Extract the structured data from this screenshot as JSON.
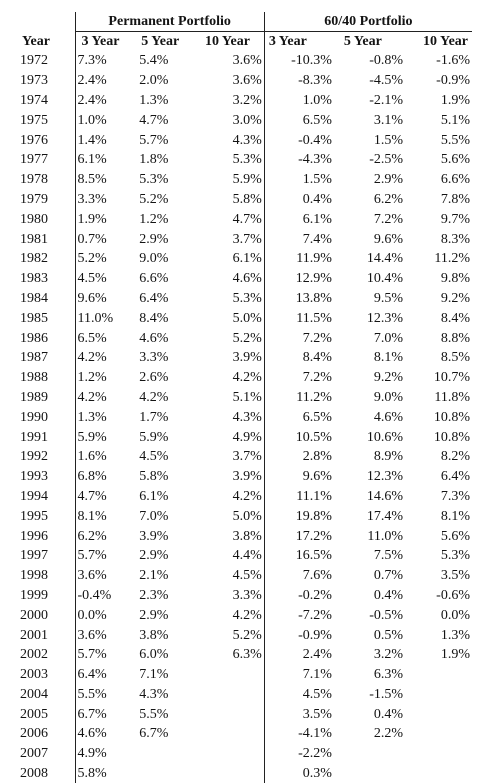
{
  "headers": {
    "permanent_portfolio": "Permanent Portfolio",
    "sixty_forty_portfolio": "60/40 Portfolio",
    "year": "Year",
    "three_year": "3 Year",
    "five_year": "5 Year",
    "ten_year": "10 Year"
  },
  "rows": [
    {
      "year": "1972",
      "p3": "7.3%",
      "p5": "5.4%",
      "p10": "3.6%",
      "s3": "-10.3%",
      "s5": "-0.8%",
      "s10": "-1.6%"
    },
    {
      "year": "1973",
      "p3": "2.4%",
      "p5": "2.0%",
      "p10": "3.6%",
      "s3": "-8.3%",
      "s5": "-4.5%",
      "s10": "-0.9%"
    },
    {
      "year": "1974",
      "p3": "2.4%",
      "p5": "1.3%",
      "p10": "3.2%",
      "s3": "1.0%",
      "s5": "-2.1%",
      "s10": "1.9%"
    },
    {
      "year": "1975",
      "p3": "1.0%",
      "p5": "4.7%",
      "p10": "3.0%",
      "s3": "6.5%",
      "s5": "3.1%",
      "s10": "5.1%"
    },
    {
      "year": "1976",
      "p3": "1.4%",
      "p5": "5.7%",
      "p10": "4.3%",
      "s3": "-0.4%",
      "s5": "1.5%",
      "s10": "5.5%"
    },
    {
      "year": "1977",
      "p3": "6.1%",
      "p5": "1.8%",
      "p10": "5.3%",
      "s3": "-4.3%",
      "s5": "-2.5%",
      "s10": "5.6%"
    },
    {
      "year": "1978",
      "p3": "8.5%",
      "p5": "5.3%",
      "p10": "5.9%",
      "s3": "1.5%",
      "s5": "2.9%",
      "s10": "6.6%"
    },
    {
      "year": "1979",
      "p3": "3.3%",
      "p5": "5.2%",
      "p10": "5.8%",
      "s3": "0.4%",
      "s5": "6.2%",
      "s10": "7.8%"
    },
    {
      "year": "1980",
      "p3": "1.9%",
      "p5": "1.2%",
      "p10": "4.7%",
      "s3": "6.1%",
      "s5": "7.2%",
      "s10": "9.7%"
    },
    {
      "year": "1981",
      "p3": "0.7%",
      "p5": "2.9%",
      "p10": "3.7%",
      "s3": "7.4%",
      "s5": "9.6%",
      "s10": "8.3%"
    },
    {
      "year": "1982",
      "p3": "5.2%",
      "p5": "9.0%",
      "p10": "6.1%",
      "s3": "11.9%",
      "s5": "14.4%",
      "s10": "11.2%"
    },
    {
      "year": "1983",
      "p3": "4.5%",
      "p5": "6.6%",
      "p10": "4.6%",
      "s3": "12.9%",
      "s5": "10.4%",
      "s10": "9.8%"
    },
    {
      "year": "1984",
      "p3": "9.6%",
      "p5": "6.4%",
      "p10": "5.3%",
      "s3": "13.8%",
      "s5": "9.5%",
      "s10": "9.2%"
    },
    {
      "year": "1985",
      "p3": "11.0%",
      "p5": "8.4%",
      "p10": "5.0%",
      "s3": "11.5%",
      "s5": "12.3%",
      "s10": "8.4%"
    },
    {
      "year": "1986",
      "p3": "6.5%",
      "p5": "4.6%",
      "p10": "5.2%",
      "s3": "7.2%",
      "s5": "7.0%",
      "s10": "8.8%"
    },
    {
      "year": "1987",
      "p3": "4.2%",
      "p5": "3.3%",
      "p10": "3.9%",
      "s3": "8.4%",
      "s5": "8.1%",
      "s10": "8.5%"
    },
    {
      "year": "1988",
      "p3": "1.2%",
      "p5": "2.6%",
      "p10": "4.2%",
      "s3": "7.2%",
      "s5": "9.2%",
      "s10": "10.7%"
    },
    {
      "year": "1989",
      "p3": "4.2%",
      "p5": "4.2%",
      "p10": "5.1%",
      "s3": "11.2%",
      "s5": "9.0%",
      "s10": "11.8%"
    },
    {
      "year": "1990",
      "p3": "1.3%",
      "p5": "1.7%",
      "p10": "4.3%",
      "s3": "6.5%",
      "s5": "4.6%",
      "s10": "10.8%"
    },
    {
      "year": "1991",
      "p3": "5.9%",
      "p5": "5.9%",
      "p10": "4.9%",
      "s3": "10.5%",
      "s5": "10.6%",
      "s10": "10.8%"
    },
    {
      "year": "1992",
      "p3": "1.6%",
      "p5": "4.5%",
      "p10": "3.7%",
      "s3": "2.8%",
      "s5": "8.9%",
      "s10": "8.2%"
    },
    {
      "year": "1993",
      "p3": "6.8%",
      "p5": "5.8%",
      "p10": "3.9%",
      "s3": "9.6%",
      "s5": "12.3%",
      "s10": "6.4%"
    },
    {
      "year": "1994",
      "p3": "4.7%",
      "p5": "6.1%",
      "p10": "4.2%",
      "s3": "11.1%",
      "s5": "14.6%",
      "s10": "7.3%"
    },
    {
      "year": "1995",
      "p3": "8.1%",
      "p5": "7.0%",
      "p10": "5.0%",
      "s3": "19.8%",
      "s5": "17.4%",
      "s10": "8.1%"
    },
    {
      "year": "1996",
      "p3": "6.2%",
      "p5": "3.9%",
      "p10": "3.8%",
      "s3": "17.2%",
      "s5": "11.0%",
      "s10": "5.6%"
    },
    {
      "year": "1997",
      "p3": "5.7%",
      "p5": "2.9%",
      "p10": "4.4%",
      "s3": "16.5%",
      "s5": "7.5%",
      "s10": "5.3%"
    },
    {
      "year": "1998",
      "p3": "3.6%",
      "p5": "2.1%",
      "p10": "4.5%",
      "s3": "7.6%",
      "s5": "0.7%",
      "s10": "3.5%"
    },
    {
      "year": "1999",
      "p3": "-0.4%",
      "p5": "2.3%",
      "p10": "3.3%",
      "s3": "-0.2%",
      "s5": "0.4%",
      "s10": "-0.6%"
    },
    {
      "year": "2000",
      "p3": "0.0%",
      "p5": "2.9%",
      "p10": "4.2%",
      "s3": "-7.2%",
      "s5": "-0.5%",
      "s10": "0.0%"
    },
    {
      "year": "2001",
      "p3": "3.6%",
      "p5": "3.8%",
      "p10": "5.2%",
      "s3": "-0.9%",
      "s5": "0.5%",
      "s10": "1.3%"
    },
    {
      "year": "2002",
      "p3": "5.7%",
      "p5": "6.0%",
      "p10": "6.3%",
      "s3": "2.4%",
      "s5": "3.2%",
      "s10": "1.9%"
    },
    {
      "year": "2003",
      "p3": "6.4%",
      "p5": "7.1%",
      "p10": "",
      "s3": "7.1%",
      "s5": "6.3%",
      "s10": ""
    },
    {
      "year": "2004",
      "p3": "5.5%",
      "p5": "4.3%",
      "p10": "",
      "s3": "4.5%",
      "s5": "-1.5%",
      "s10": ""
    },
    {
      "year": "2005",
      "p3": "6.7%",
      "p5": "5.5%",
      "p10": "",
      "s3": "3.5%",
      "s5": "0.4%",
      "s10": ""
    },
    {
      "year": "2006",
      "p3": "4.6%",
      "p5": "6.7%",
      "p10": "",
      "s3": "-4.1%",
      "s5": "2.2%",
      "s10": ""
    },
    {
      "year": "2007",
      "p3": "4.9%",
      "p5": "",
      "p10": "",
      "s3": "-2.2%",
      "s5": "",
      "s10": ""
    },
    {
      "year": "2008",
      "p3": "5.8%",
      "p5": "",
      "p10": "",
      "s3": "0.3%",
      "s5": "",
      "s10": ""
    }
  ]
}
